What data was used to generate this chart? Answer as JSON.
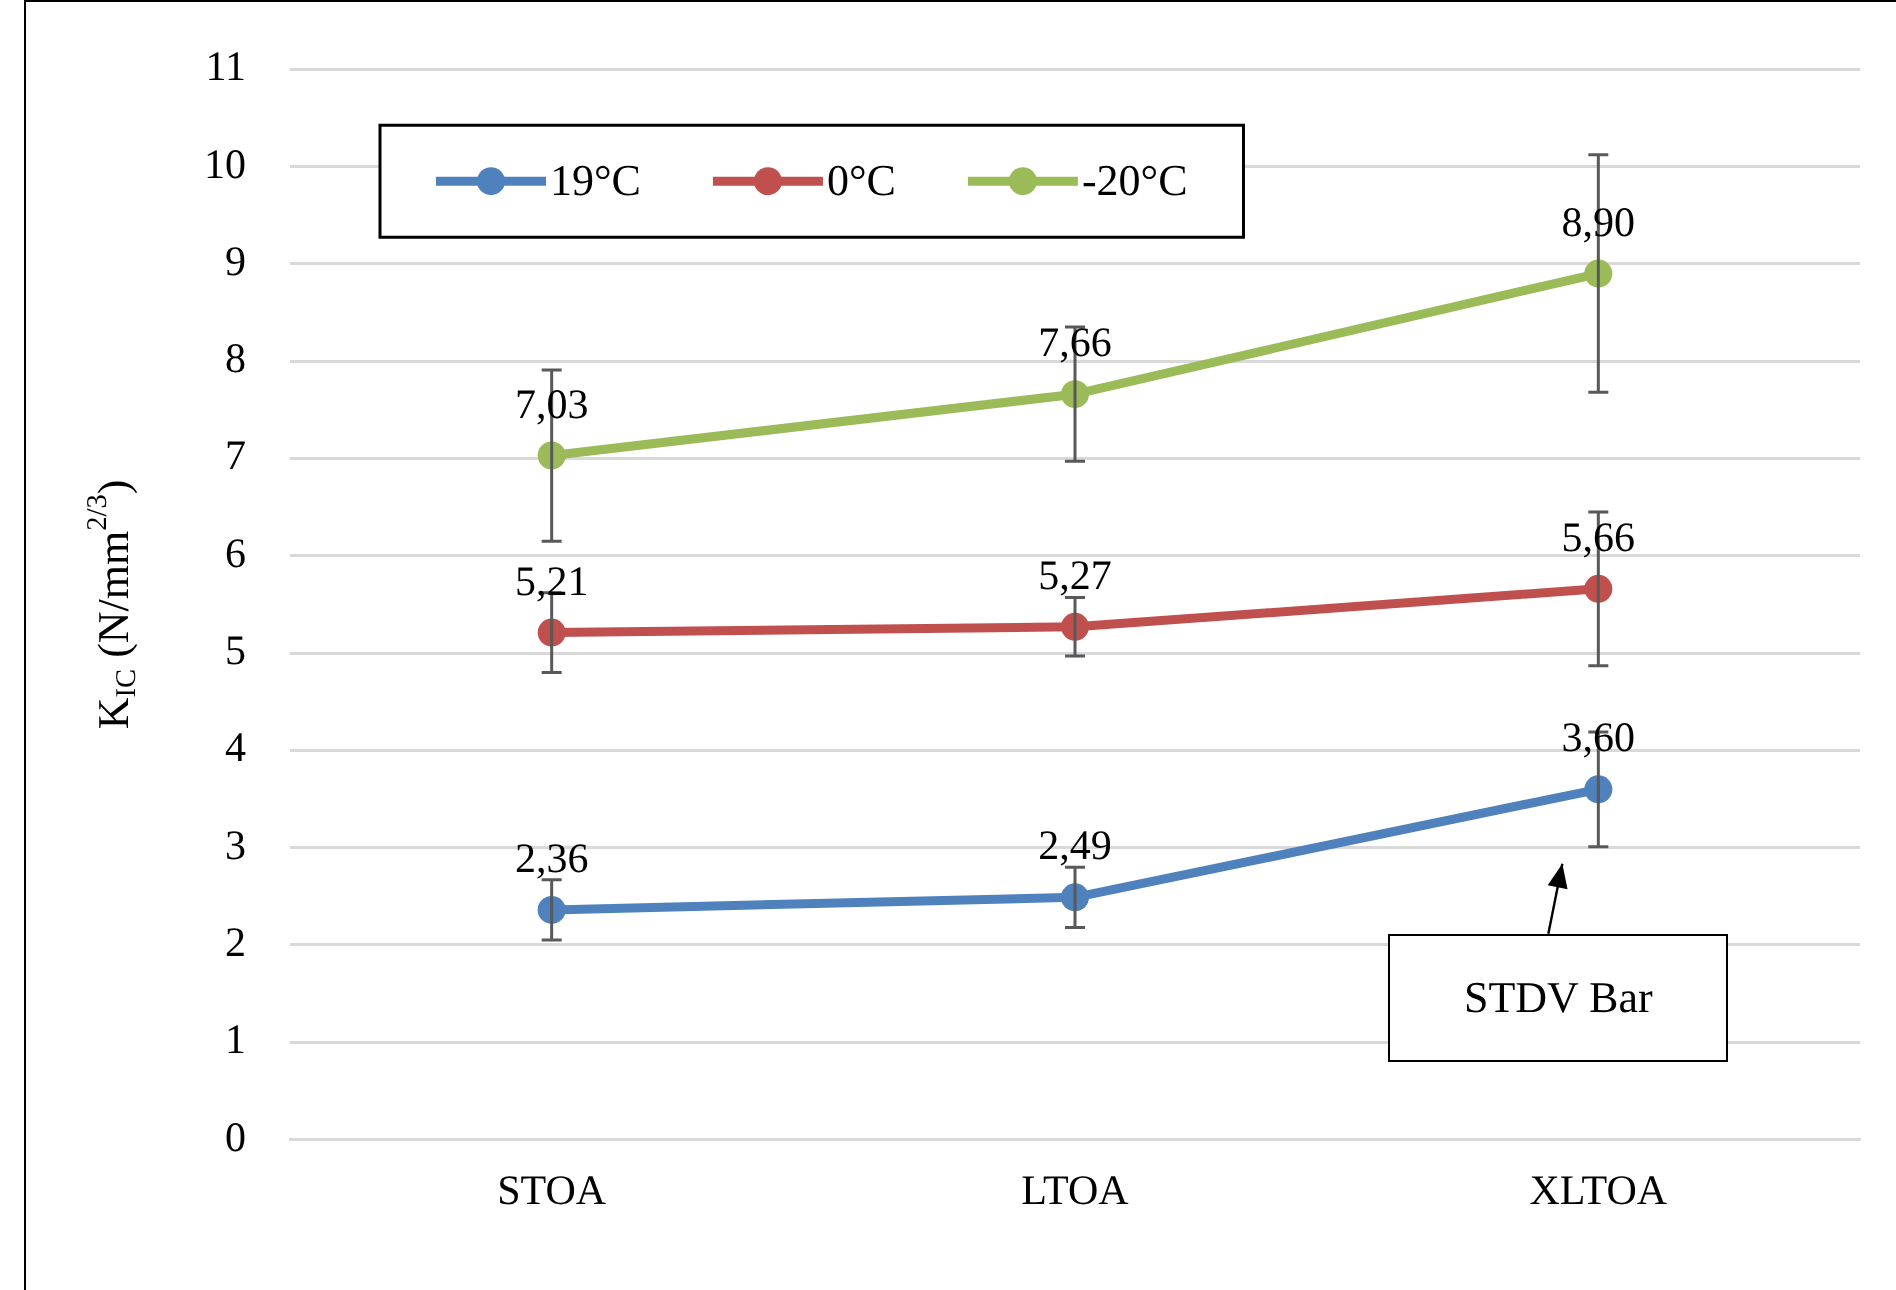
{
  "chart_data": {
    "type": "line",
    "ylabel": "K$_{IC}$ (N/mm$^{2/3}$)",
    "categories": [
      "STOA",
      "LTOA",
      "XLTOA"
    ],
    "series": [
      {
        "name": "19°C",
        "color": "#4f81bd",
        "values": [
          2.36,
          2.49,
          3.6
        ],
        "value_labels": [
          "2,36",
          "2,49",
          "3,60"
        ],
        "errors": [
          0.31,
          0.31,
          0.59
        ]
      },
      {
        "name": "0°C",
        "color": "#c0504d",
        "values": [
          5.21,
          5.27,
          5.66
        ],
        "value_labels": [
          "5,21",
          "5,27",
          "5,66"
        ],
        "errors": [
          0.41,
          0.3,
          0.79
        ]
      },
      {
        "name": "-20°C",
        "color": "#9bbb59",
        "values": [
          7.03,
          7.66,
          8.9
        ],
        "value_labels": [
          "7,03",
          "7,66",
          "8,90"
        ],
        "errors": [
          0.88,
          0.69,
          1.22
        ]
      }
    ],
    "ylim": [
      0,
      11
    ],
    "yticks": [
      0,
      1,
      2,
      3,
      4,
      5,
      6,
      7,
      8,
      9,
      10,
      11
    ],
    "grid": "y",
    "legend": "top left",
    "marker": "circle",
    "line_style": "solid",
    "annotations": [
      {
        "text": "STDV Bar",
        "x": "XLTOA",
        "y": 3.0
      }
    ]
  }
}
